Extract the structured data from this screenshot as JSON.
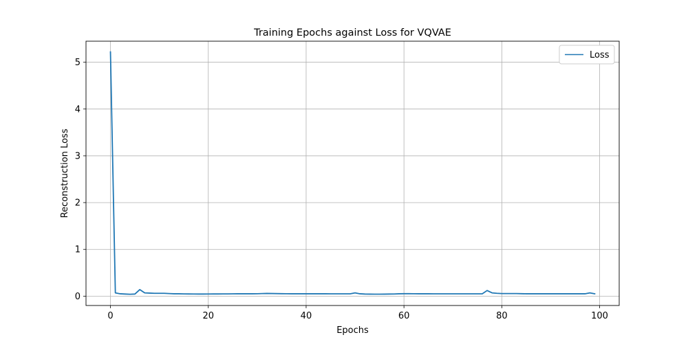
{
  "chart_data": {
    "type": "line",
    "title": "Training Epochs against Loss for VQVAE",
    "xlabel": "Epochs",
    "ylabel": "Reconstruction Loss",
    "xlim": [
      -5,
      104
    ],
    "ylim": [
      -0.2,
      5.45
    ],
    "xticks": [
      0,
      20,
      40,
      60,
      80,
      100
    ],
    "yticks": [
      0,
      1,
      2,
      3,
      4,
      5
    ],
    "grid": true,
    "legend_position": "top-right",
    "series": [
      {
        "name": "Loss",
        "color": "#1f77b4",
        "x": [
          0,
          1,
          2,
          3,
          4,
          5,
          6,
          7,
          8,
          9,
          10,
          11,
          12,
          13,
          14,
          15,
          16,
          17,
          18,
          19,
          20,
          21,
          22,
          23,
          24,
          25,
          26,
          27,
          28,
          29,
          30,
          31,
          32,
          33,
          34,
          35,
          36,
          37,
          38,
          39,
          40,
          41,
          42,
          43,
          44,
          45,
          46,
          47,
          48,
          49,
          50,
          51,
          52,
          53,
          54,
          55,
          56,
          57,
          58,
          59,
          60,
          61,
          62,
          63,
          64,
          65,
          66,
          67,
          68,
          69,
          70,
          71,
          72,
          73,
          74,
          75,
          76,
          77,
          78,
          79,
          80,
          81,
          82,
          83,
          84,
          85,
          86,
          87,
          88,
          89,
          90,
          91,
          92,
          93,
          94,
          95,
          96,
          97,
          98,
          99
        ],
        "y": [
          5.22,
          0.07,
          0.05,
          0.045,
          0.04,
          0.045,
          0.14,
          0.07,
          0.065,
          0.06,
          0.06,
          0.06,
          0.055,
          0.05,
          0.05,
          0.048,
          0.047,
          0.046,
          0.045,
          0.045,
          0.046,
          0.047,
          0.047,
          0.048,
          0.048,
          0.049,
          0.05,
          0.05,
          0.05,
          0.05,
          0.051,
          0.055,
          0.058,
          0.056,
          0.054,
          0.052,
          0.051,
          0.05,
          0.05,
          0.05,
          0.05,
          0.05,
          0.05,
          0.05,
          0.05,
          0.049,
          0.049,
          0.049,
          0.049,
          0.049,
          0.07,
          0.05,
          0.045,
          0.043,
          0.042,
          0.042,
          0.043,
          0.045,
          0.046,
          0.05,
          0.052,
          0.052,
          0.051,
          0.05,
          0.05,
          0.05,
          0.049,
          0.049,
          0.049,
          0.049,
          0.049,
          0.049,
          0.049,
          0.049,
          0.049,
          0.049,
          0.05,
          0.12,
          0.07,
          0.06,
          0.055,
          0.055,
          0.055,
          0.055,
          0.052,
          0.05,
          0.05,
          0.05,
          0.05,
          0.05,
          0.05,
          0.05,
          0.05,
          0.05,
          0.05,
          0.05,
          0.05,
          0.05,
          0.07,
          0.05
        ]
      }
    ]
  }
}
